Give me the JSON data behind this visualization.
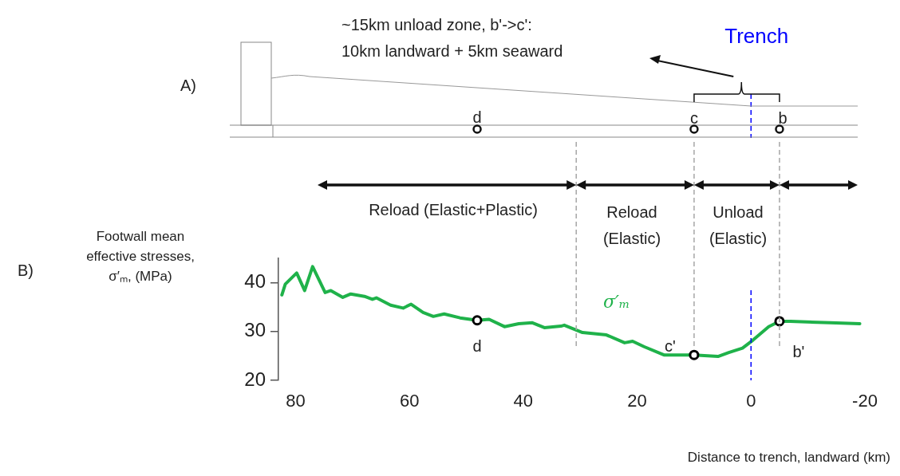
{
  "chart_data": {
    "type": "line",
    "xlabel": "Distance to trench, landward (km)",
    "ylabel": "Footwall mean effective stresses, σ′ₘ, (MPa)",
    "xlim": [
      83,
      -20
    ],
    "xticks": [
      80,
      60,
      40,
      20,
      0,
      -20
    ],
    "ylim": [
      20,
      45
    ],
    "yticks": [
      20,
      30,
      40
    ],
    "series": [
      {
        "name": "σ′ₘ",
        "color": "#1fb24a",
        "x": [
          82.4,
          81.8,
          79.8,
          78.4,
          77.0,
          74.8,
          73.8,
          71.7,
          70.3,
          67.9,
          66.5,
          65.8,
          63.3,
          61.1,
          59.7,
          57.6,
          55.8,
          53.9,
          51.1,
          48.1,
          46.0,
          43.3,
          40.8,
          38.4,
          36.3,
          33.4,
          32.8,
          29.6,
          25.4,
          22.2,
          20.8,
          18.8,
          15.3,
          10.0,
          5.8,
          3.9,
          1.5,
          -0.3,
          -3.1,
          -5.0,
          -6.9,
          -13.9,
          -19.1
        ],
        "values": [
          37.5,
          39.7,
          42.0,
          38.4,
          43.3,
          38.0,
          38.4,
          37.0,
          37.7,
          37.2,
          36.6,
          36.9,
          35.4,
          34.8,
          35.6,
          33.9,
          33.1,
          33.6,
          32.8,
          32.3,
          32.5,
          31.0,
          31.6,
          31.8,
          30.8,
          31.1,
          31.3,
          29.8,
          29.3,
          27.7,
          28.0,
          26.9,
          25.2,
          25.2,
          24.9,
          25.7,
          26.6,
          28.2,
          31.0,
          32.1,
          32.1,
          31.8,
          31.6
        ]
      },
      {
        "type": "scatter",
        "marker": "circle",
        "color": "#000000",
        "x": [
          48.1,
          10.0,
          -5.0
        ],
        "values": [
          32.3,
          25.2,
          32.1
        ]
      }
    ],
    "ref_lines": [
      {
        "axis": "x",
        "value": 30.7,
        "color": "#a6a6a6",
        "line_style": "dashed"
      },
      {
        "axis": "x",
        "value": 10.0,
        "color": "#a6a6a6",
        "line_style": "dashed"
      },
      {
        "axis": "x",
        "value": -5.0,
        "color": "#a6a6a6",
        "line_style": "dashed"
      },
      {
        "axis": "x",
        "value": 0,
        "label": "Trench",
        "color": "#0000ff",
        "line_style": "dashed"
      }
    ],
    "annotations": [
      "A)",
      "B)",
      "~15km unload zone, b'->c':",
      "10km landward + 5km seaward",
      "d",
      "c",
      "b",
      "Reload (Elastic+Plastic)",
      "Reload",
      "(Elastic)",
      "Unload",
      "(Elastic)",
      {
        "text": "d",
        "x": 48.1,
        "y": 32.3
      },
      {
        "text": "c'",
        "x": 10.0,
        "y": 25.2
      },
      {
        "text": "b'",
        "x": -5.0,
        "y": 32.1
      }
    ]
  }
}
